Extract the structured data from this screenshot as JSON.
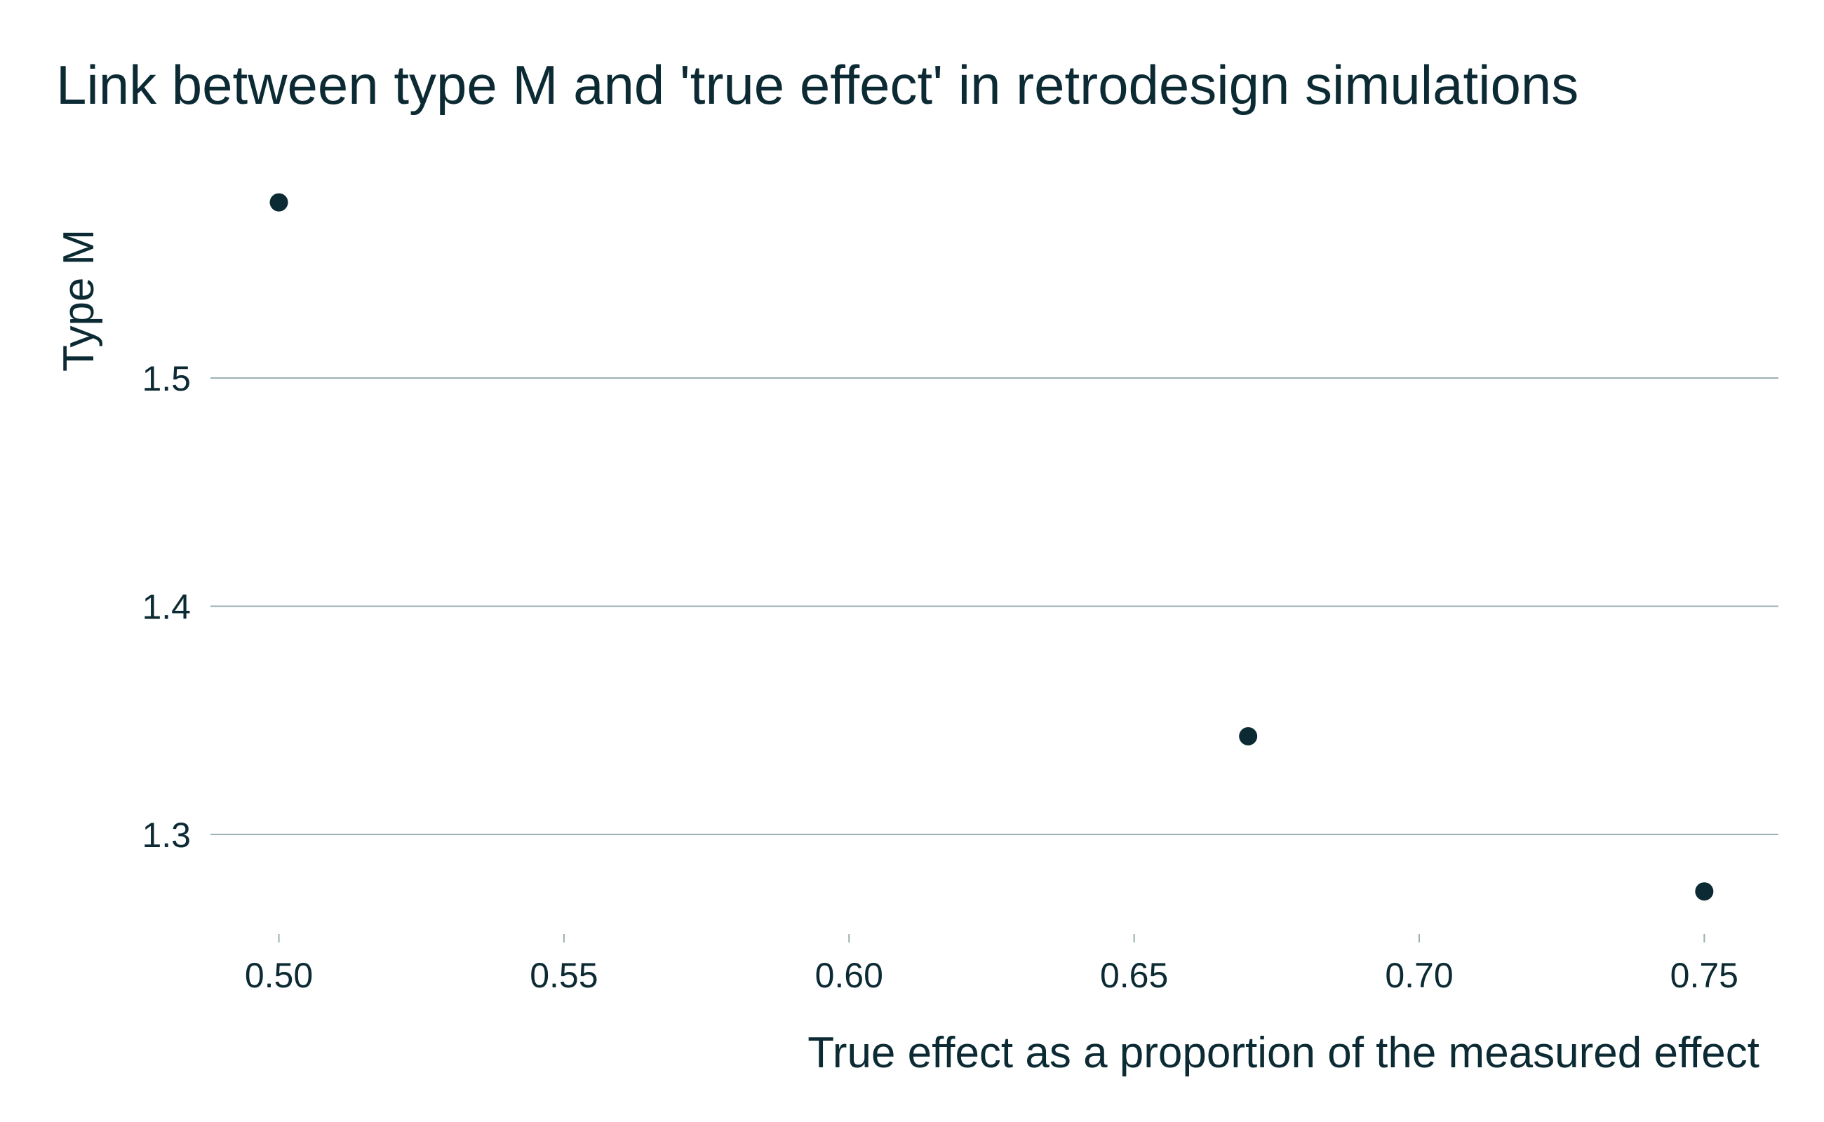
{
  "chart_data": {
    "type": "scatter",
    "title": "Link between type M and 'true effect' in retrodesign simulations",
    "xlabel": "True effect as a proportion of the measured effect",
    "ylabel": "Type M",
    "xlim": [
      0.488,
      0.763
    ],
    "ylim": [
      1.26,
      1.595
    ],
    "x_ticks": [
      0.5,
      0.55,
      0.6,
      0.65,
      0.7,
      0.75
    ],
    "x_tick_labels": [
      "0.50",
      "0.55",
      "0.60",
      "0.65",
      "0.70",
      "0.75"
    ],
    "y_ticks": [
      1.3,
      1.4,
      1.5
    ],
    "y_tick_labels": [
      "1.3",
      "1.4",
      "1.5"
    ],
    "grid": "horizontal",
    "series": [
      {
        "points": [
          {
            "x": 0.5,
            "y": 1.577
          },
          {
            "x": 0.67,
            "y": 1.343
          },
          {
            "x": 0.75,
            "y": 1.275
          }
        ]
      }
    ],
    "colors": {
      "point": "#0c2a33",
      "text": "#0c2a33",
      "grid": "#9aaeb1"
    }
  }
}
